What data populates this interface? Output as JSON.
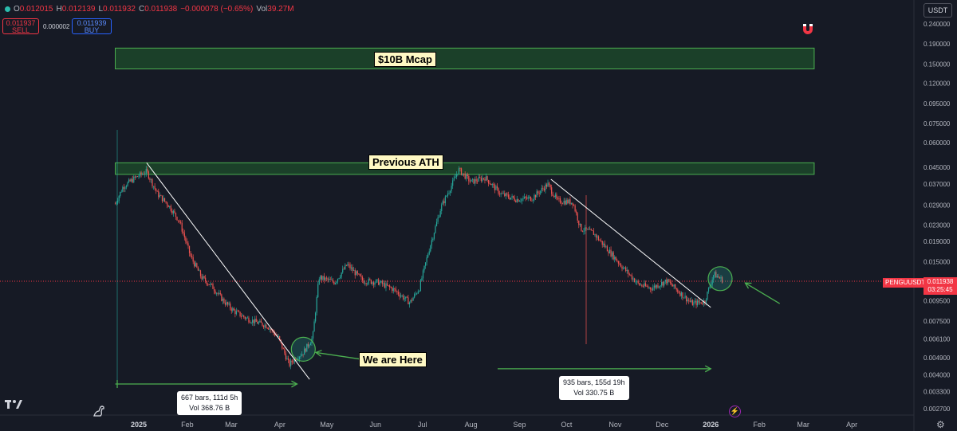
{
  "header": {
    "ohlc": [
      {
        "label": "O",
        "value": "0.012015"
      },
      {
        "label": "H",
        "value": "0.012139"
      },
      {
        "label": "L",
        "value": "0.011932"
      },
      {
        "label": "C",
        "value": "0.011938"
      }
    ],
    "change": "−0.000078 (−0.65%)",
    "vol_label": "Vol",
    "vol_value": "39.27M",
    "sell_price": "0.011937",
    "sell_label": "SELL",
    "spread": "0.000002",
    "buy_price": "0.011939",
    "buy_label": "BUY",
    "currency": "USDT"
  },
  "icons": {
    "magnet": "magnet-icon",
    "logo": "tradingview-logo",
    "dino": "dino-icon",
    "settings": "gear-icon",
    "flash": "lightning-icon"
  },
  "colors": {
    "background": "#161a25",
    "up": "#26a69a",
    "down": "#ef5350",
    "zone_fill": "#1e4d2b",
    "zone_border": "#4caf50",
    "arrow": "#4caf50",
    "trendline": "#ffffff",
    "price_line": "#f23645"
  },
  "price_tag": {
    "symbol": "PENGUUSDT",
    "price": "0.011938",
    "countdown": "03:25:45"
  },
  "chart_data": {
    "type": "candlestick",
    "scale": "log",
    "y_ticks": [
      "0.240000",
      "0.190000",
      "0.150000",
      "0.120000",
      "0.095000",
      "0.075000",
      "0.060000",
      "0.045000",
      "0.037000",
      "0.029000",
      "0.023000",
      "0.019000",
      "0.015000",
      "0.009500",
      "0.007500",
      "0.006100",
      "0.004900",
      "0.004000",
      "0.003300",
      "0.002700"
    ],
    "x_ticks": [
      "2025",
      "Feb",
      "Mar",
      "Apr",
      "May",
      "Jun",
      "Jul",
      "Aug",
      "Sep",
      "Oct",
      "Nov",
      "Dec",
      "2026",
      "Feb",
      "Mar",
      "Apr"
    ],
    "price_path": [
      [
        "2024-12-17",
        0.0295
      ],
      [
        "2024-12-22",
        0.036
      ],
      [
        "2024-12-30",
        0.04
      ],
      [
        "2025-01-06",
        0.043
      ],
      [
        "2025-01-13",
        0.033
      ],
      [
        "2025-01-20",
        0.029
      ],
      [
        "2025-01-27",
        0.024
      ],
      [
        "2025-02-03",
        0.016
      ],
      [
        "2025-02-10",
        0.0125
      ],
      [
        "2025-02-17",
        0.0112
      ],
      [
        "2025-02-24",
        0.0095
      ],
      [
        "2025-03-03",
        0.0084
      ],
      [
        "2025-03-10",
        0.0078
      ],
      [
        "2025-03-17",
        0.0074
      ],
      [
        "2025-03-24",
        0.0071
      ],
      [
        "2025-03-31",
        0.0062
      ],
      [
        "2025-04-07",
        0.0045
      ],
      [
        "2025-04-10",
        0.0048
      ],
      [
        "2025-04-16",
        0.0052
      ],
      [
        "2025-04-22",
        0.0062
      ],
      [
        "2025-04-26",
        0.0125
      ],
      [
        "2025-05-06",
        0.0118
      ],
      [
        "2025-05-14",
        0.0145
      ],
      [
        "2025-05-24",
        0.012
      ],
      [
        "2025-06-03",
        0.0118
      ],
      [
        "2025-06-13",
        0.0108
      ],
      [
        "2025-06-23",
        0.0093
      ],
      [
        "2025-06-29",
        0.011
      ],
      [
        "2025-07-05",
        0.017
      ],
      [
        "2025-07-13",
        0.0285
      ],
      [
        "2025-07-20",
        0.037
      ],
      [
        "2025-07-24",
        0.044
      ],
      [
        "2025-08-01",
        0.038
      ],
      [
        "2025-08-10",
        0.04
      ],
      [
        "2025-08-20",
        0.033
      ],
      [
        "2025-08-30",
        0.031
      ],
      [
        "2025-09-09",
        0.0315
      ],
      [
        "2025-09-19",
        0.037
      ],
      [
        "2025-09-25",
        0.0305
      ],
      [
        "2025-10-05",
        0.03
      ],
      [
        "2025-10-10",
        0.022
      ],
      [
        "2025-10-18",
        0.021
      ],
      [
        "2025-10-28",
        0.017
      ],
      [
        "2025-11-06",
        0.014
      ],
      [
        "2025-11-16",
        0.0115
      ],
      [
        "2025-11-24",
        0.011
      ],
      [
        "2025-12-04",
        0.012
      ],
      [
        "2025-12-12",
        0.0105
      ],
      [
        "2025-12-20",
        0.0092
      ],
      [
        "2025-12-28",
        0.0094
      ],
      [
        "2026-01-03",
        0.013
      ],
      [
        "2026-01-09",
        0.012
      ]
    ],
    "zones": [
      {
        "label": "$10B Mcap",
        "from": "2024-12-17",
        "to": "2026-03-08",
        "low": 0.142,
        "high": 0.181
      },
      {
        "label": "Previous ATH",
        "from": "2024-12-17",
        "to": "2026-03-08",
        "low": 0.0415,
        "high": 0.0475
      }
    ],
    "trendlines": [
      {
        "from": [
          "2025-01-06",
          0.0475
        ],
        "to": [
          "2025-04-20",
          0.0038
        ]
      },
      {
        "from": [
          "2025-09-21",
          0.0392
        ],
        "to": [
          "2026-01-01",
          0.0088
        ]
      }
    ],
    "circles": [
      {
        "at": [
          "2025-04-16",
          0.0054
        ]
      },
      {
        "at": [
          "2026-01-07",
          0.0123
        ]
      }
    ],
    "arrows": [
      {
        "direction": "left",
        "from": [
          "2025-06-12",
          0.00455
        ],
        "to": [
          "2025-04-24",
          0.0052
        ]
      },
      {
        "direction": "left",
        "from": [
          "2026-02-14",
          0.0092
        ],
        "to": [
          "2026-01-23",
          0.0117
        ]
      },
      {
        "direction": "right",
        "from": [
          "2025-08-18",
          0.0043
        ],
        "to": [
          "2026-01-01",
          0.0043
        ]
      },
      {
        "direction": "right",
        "from": [
          "2024-12-17",
          0.0036
        ],
        "to": [
          "2025-04-12",
          0.0036
        ]
      }
    ],
    "annotations": [
      {
        "text": "We are Here"
      },
      {
        "line1": "667 bars, 111d 5h",
        "line2": "Vol 368.76 B"
      },
      {
        "line1": "935 bars, 155d 19h",
        "line2": "Vol 330.75 B"
      }
    ],
    "current_price": 0.011938
  }
}
